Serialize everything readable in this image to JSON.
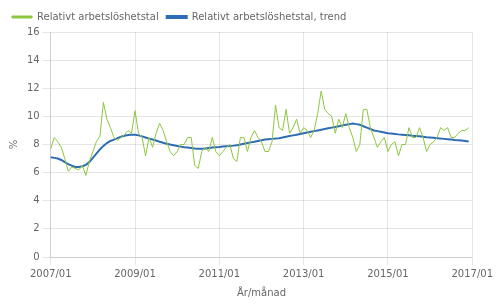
{
  "chart_data": {
    "type": "line",
    "xlabel": "År/månad",
    "ylabel": "%",
    "categories": [
      "2007/01",
      null,
      null,
      null,
      null,
      null,
      null,
      null,
      null,
      null,
      null,
      null,
      null,
      null,
      null,
      null,
      null,
      null,
      null,
      null,
      null,
      null,
      null,
      null,
      "2009/01",
      null,
      null,
      null,
      null,
      null,
      null,
      null,
      null,
      null,
      null,
      null,
      null,
      null,
      null,
      null,
      null,
      null,
      null,
      null,
      null,
      null,
      null,
      null,
      "2011/01",
      null,
      null,
      null,
      null,
      null,
      null,
      null,
      null,
      null,
      null,
      null,
      null,
      null,
      null,
      null,
      null,
      null,
      null,
      null,
      null,
      null,
      null,
      null,
      "2013/01",
      null,
      null,
      null,
      null,
      null,
      null,
      null,
      null,
      null,
      null,
      null,
      null,
      null,
      null,
      null,
      null,
      null,
      null,
      null,
      null,
      null,
      null,
      null,
      "2015/01",
      null,
      null,
      null,
      null,
      null,
      null,
      null,
      null,
      null,
      null,
      null,
      null,
      null,
      null,
      null,
      null,
      null,
      null,
      null,
      null,
      null,
      null,
      null,
      "2017/01"
    ],
    "series": [
      {
        "name": "Relativt arbetslöshetstal",
        "color": "#8dc63f",
        "values": [
          7.7,
          8.5,
          8.2,
          7.8,
          7.0,
          6.1,
          6.4,
          6.3,
          6.2,
          6.5,
          5.8,
          6.8,
          7.5,
          8.2,
          8.6,
          11.0,
          9.8,
          9.2,
          8.5,
          8.3,
          8.5,
          8.7,
          9.0,
          8.8,
          10.4,
          8.8,
          8.5,
          7.2,
          8.5,
          7.8,
          8.8,
          9.5,
          9.0,
          8.2,
          7.5,
          7.2,
          7.5,
          8.0,
          8.0,
          8.5,
          8.5,
          6.5,
          6.3,
          7.5,
          7.8,
          7.5,
          8.5,
          7.5,
          7.2,
          7.5,
          7.8,
          8.0,
          7.0,
          6.8,
          8.5,
          8.5,
          7.5,
          8.5,
          9.0,
          8.5,
          8.2,
          7.5,
          7.5,
          8.2,
          10.8,
          9.2,
          9.0,
          10.5,
          8.8,
          9.2,
          9.8,
          8.8,
          9.2,
          9.0,
          8.5,
          9.0,
          10.2,
          11.8,
          10.5,
          10.2,
          10.0,
          8.8,
          9.8,
          9.2,
          10.2,
          9.2,
          8.5,
          7.5,
          8.0,
          10.5,
          10.5,
          9.2,
          8.5,
          7.8,
          8.2,
          8.5,
          7.5,
          8.0,
          8.2,
          7.2,
          8.0,
          8.0,
          9.2,
          8.5,
          8.5,
          9.2,
          8.5,
          7.5,
          8.0,
          8.2,
          8.5,
          9.2,
          9.0,
          9.2,
          8.5,
          8.5,
          8.8,
          9.0,
          9.0,
          9.2,
          null
        ]
      },
      {
        "name": "Relativt arbetslöshetstal, trend",
        "color": "#2e6db4",
        "values": [
          7.1,
          7.05,
          7.0,
          6.9,
          6.75,
          6.6,
          6.5,
          6.4,
          6.4,
          6.45,
          6.55,
          6.75,
          7.05,
          7.35,
          7.65,
          7.9,
          8.1,
          8.25,
          8.35,
          8.45,
          8.55,
          8.62,
          8.67,
          8.7,
          8.7,
          8.65,
          8.58,
          8.5,
          8.42,
          8.35,
          8.28,
          8.2,
          8.12,
          8.06,
          8.0,
          7.95,
          7.9,
          7.85,
          7.8,
          7.78,
          7.75,
          7.72,
          7.7,
          7.7,
          7.72,
          7.75,
          7.78,
          7.8,
          7.82,
          7.85,
          7.88,
          7.9,
          7.92,
          7.95,
          8.0,
          8.05,
          8.1,
          8.15,
          8.2,
          8.25,
          8.3,
          8.35,
          8.38,
          8.4,
          8.42,
          8.45,
          8.5,
          8.55,
          8.6,
          8.65,
          8.7,
          8.75,
          8.8,
          8.85,
          8.9,
          8.95,
          9.0,
          9.05,
          9.1,
          9.15,
          9.2,
          9.25,
          9.3,
          9.35,
          9.4,
          9.45,
          9.5,
          9.45,
          9.4,
          9.3,
          9.2,
          9.1,
          9.0,
          8.95,
          8.9,
          8.85,
          8.8,
          8.78,
          8.75,
          8.72,
          8.7,
          8.68,
          8.65,
          8.62,
          8.6,
          8.58,
          8.55,
          8.52,
          8.5,
          8.48,
          8.45,
          8.42,
          8.4,
          8.38,
          8.35,
          8.32,
          8.3,
          8.28,
          8.25,
          8.22,
          null
        ]
      }
    ],
    "ylim": [
      0,
      16
    ],
    "yticks": [
      0,
      2,
      4,
      6,
      8,
      10,
      12,
      14,
      16
    ],
    "grid": true,
    "legend": "top"
  }
}
